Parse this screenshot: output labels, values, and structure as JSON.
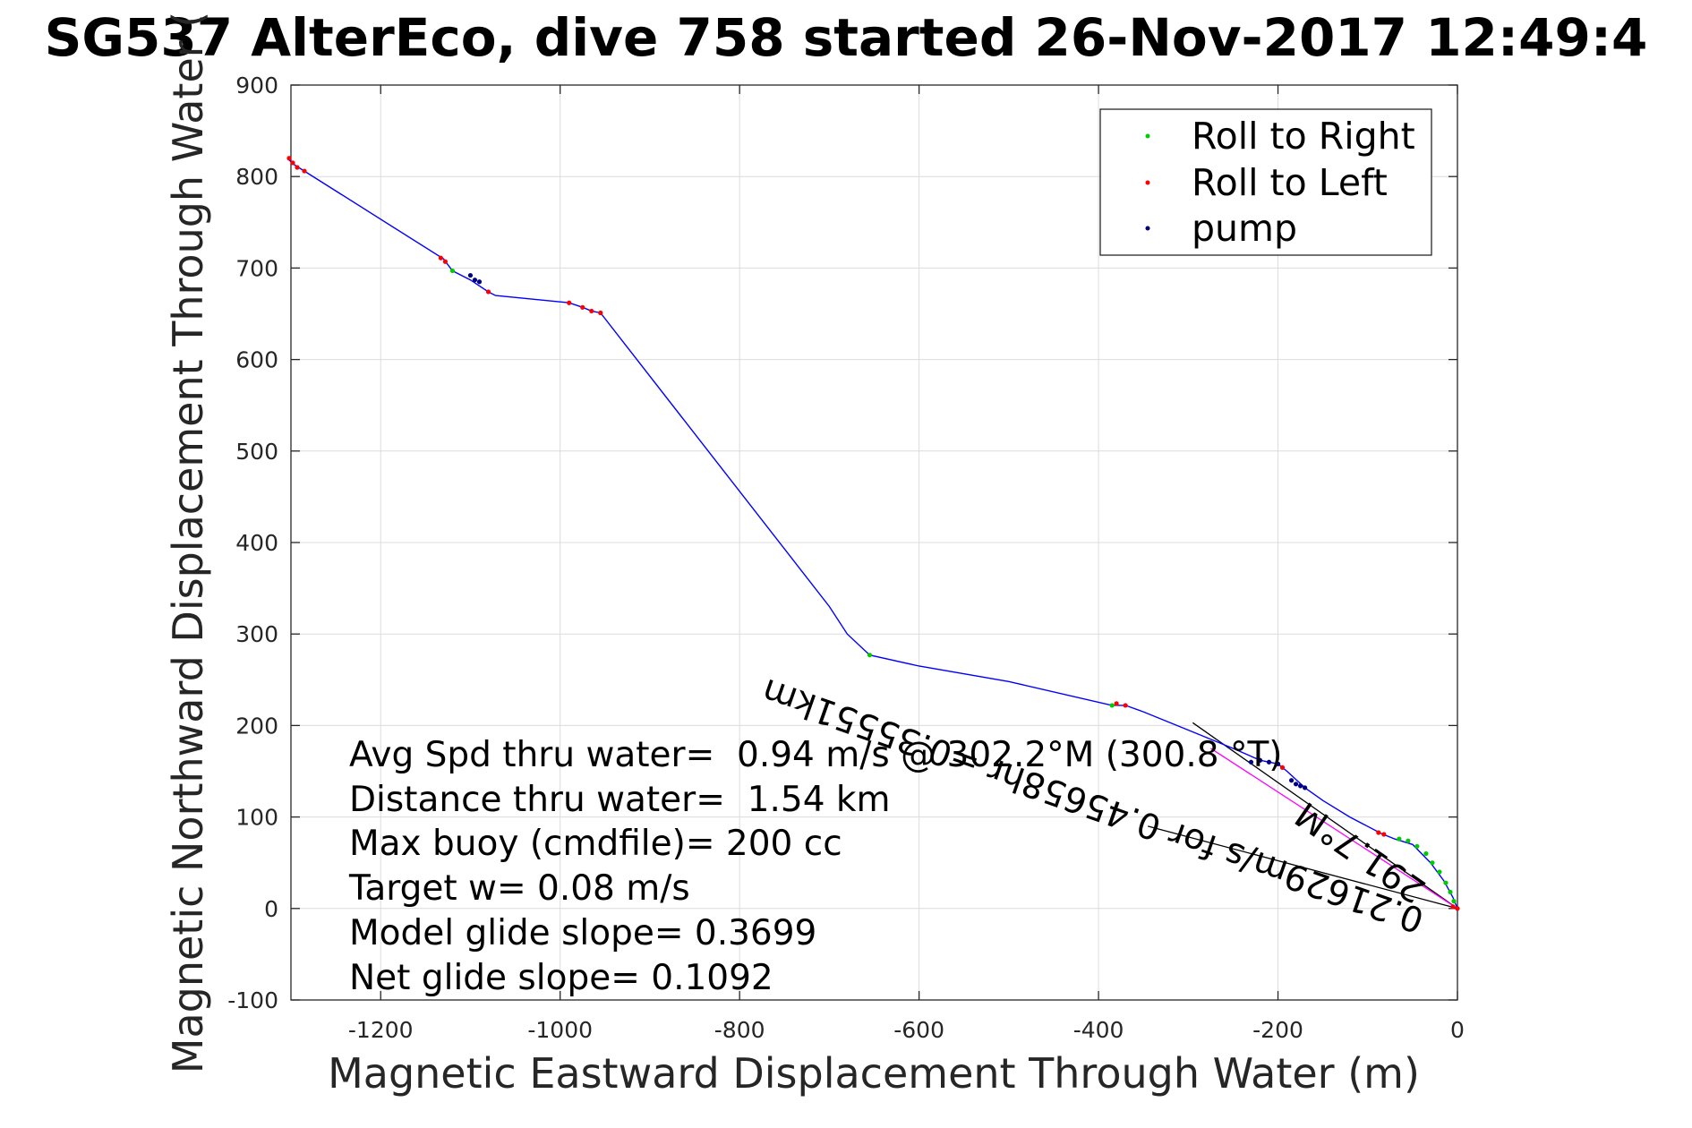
{
  "chart_data": {
    "type": "line",
    "title": "SG537 AlterEco, dive 758 started 26-Nov-2017 12:49:4",
    "xlabel": "Magnetic Eastward Displacement Through Water (m)",
    "ylabel": "Magnetic Northward Displacement Through Water (",
    "xlim": [
      -1300,
      0
    ],
    "ylim": [
      -100,
      900
    ],
    "xticks": [
      -1200,
      -1000,
      -800,
      -600,
      -400,
      -200,
      0
    ],
    "yticks": [
      -100,
      0,
      100,
      200,
      300,
      400,
      500,
      600,
      700,
      800,
      900
    ],
    "grid": true,
    "legend_position": "top-right",
    "legend": [
      "Roll to Right",
      "Roll to Left",
      "pump"
    ],
    "colors": {
      "track": "#0000ff",
      "roll_right": "#00cc00",
      "roll_left": "#ff0000",
      "pump": "#000080",
      "grid": "#dcdcdc",
      "pink_segment": "#ff00ff"
    },
    "track": {
      "x": [
        -1302,
        -1295,
        -1285,
        -1130,
        -1120,
        -1100,
        -1080,
        -1072,
        -990,
        -975,
        -965,
        -955,
        -700,
        -680,
        -655,
        -600,
        -500,
        -385,
        -370,
        -350,
        -300,
        -250,
        -220,
        -200,
        -190,
        -170,
        -150,
        -120,
        -85,
        -70,
        -50,
        -30,
        -15,
        -5,
        0
      ],
      "y": [
        818,
        812,
        806,
        710,
        697,
        687,
        674,
        670,
        662,
        657,
        653,
        651,
        330,
        300,
        277,
        265,
        248,
        222,
        222,
        215,
        195,
        175,
        162,
        158,
        150,
        132,
        118,
        100,
        82,
        76,
        70,
        50,
        30,
        12,
        0
      ]
    },
    "series": [
      {
        "name": "Roll to Right",
        "x": [
          -1120,
          -955,
          -655,
          -385,
          -65,
          -55,
          -45,
          -35,
          -28,
          -20,
          -13,
          -8,
          -4
        ],
        "y": [
          697,
          651,
          277,
          222,
          76,
          74,
          68,
          60,
          50,
          40,
          28,
          18,
          8
        ]
      },
      {
        "name": "Roll to Left",
        "x": [
          -1302,
          -1298,
          -1293,
          -1285,
          -1133,
          -1128,
          -1080,
          -990,
          -975,
          -965,
          -955,
          -380,
          -370,
          -200,
          -195,
          -88,
          -82,
          -5,
          0
        ],
        "y": [
          820,
          815,
          810,
          806,
          711,
          707,
          674,
          662,
          657,
          653,
          651,
          224,
          222,
          158,
          154,
          83,
          81,
          2,
          0
        ]
      },
      {
        "name": "pump",
        "x": [
          -1100,
          -1095,
          -1090,
          -230,
          -220,
          -210,
          -200,
          -185,
          -180,
          -175,
          -170
        ],
        "y": [
          692,
          687,
          685,
          160,
          162,
          160,
          158,
          140,
          136,
          134,
          132
        ]
      }
    ],
    "annotation_lines": [
      {
        "x": [
          -295,
          0
        ],
        "y": [
          203,
          0
        ]
      },
      {
        "x": [
          -345,
          0
        ],
        "y": [
          90,
          0
        ]
      }
    ],
    "pink_segment": {
      "x": [
        -275,
        0
      ],
      "y": [
        175,
        0
      ]
    },
    "annotations": [
      "Avg Spd thru water=  0.94 m/s @ 302.2°M (300.8 °T)",
      "Distance thru water=  1.54 km",
      "Max buoy (cmdfile)= 200 cc",
      "Target w= 0.08 m/s",
      "Model glide slope= 0.3699",
      "Net glide slope= 0.1092"
    ],
    "rotated_labels": [
      "0.21629m/s for 0.45658hr =0.35551km",
      "291.7°M"
    ]
  }
}
